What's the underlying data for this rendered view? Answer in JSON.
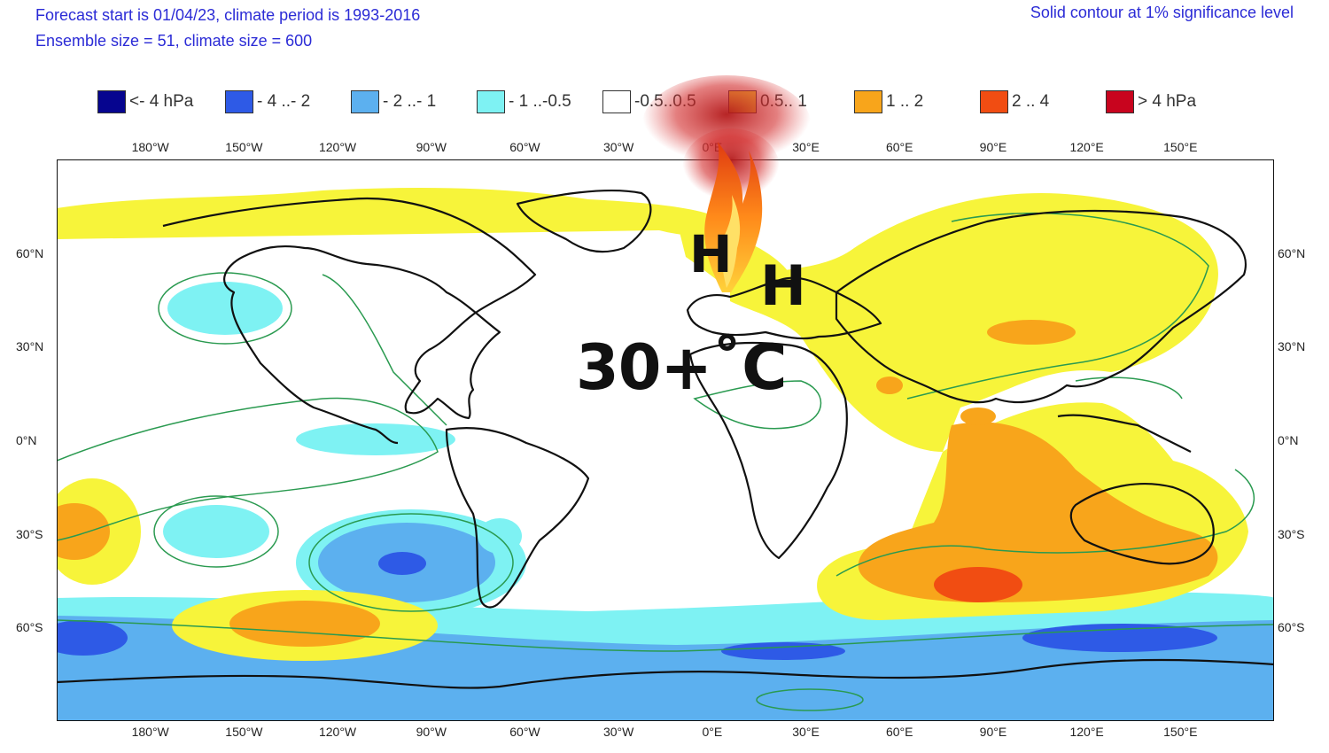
{
  "header": {
    "line1": "Forecast start is 01/04/23, climate period is 1993-2016",
    "line2": "Ensemble size = 51, climate size = 600",
    "right": "Solid contour at 1% significance level"
  },
  "legend": [
    {
      "label": "<- 4 hPa",
      "color": "#06058f"
    },
    {
      "label": "- 4 ..- 2",
      "color": "#2e5ae6"
    },
    {
      "label": "- 2 ..- 1",
      "color": "#5cb0ef"
    },
    {
      "label": "- 1 ..-0.5",
      "color": "#7ef2f3"
    },
    {
      "label": "-0.5..0.5",
      "color": "#ffffff"
    },
    {
      "label": "0.5.. 1",
      "color": "#f7f43a"
    },
    {
      "label": "1 .. 2",
      "color": "#f8a51b"
    },
    {
      "label": "2 .. 4",
      "color": "#f14d12"
    },
    {
      "label": ">  4 hPa",
      "color": "#c8041e"
    }
  ],
  "axes": {
    "lon_ticks": [
      "180°W",
      "150°W",
      "120°W",
      "90°W",
      "60°W",
      "30°W",
      "0°E",
      "30°E",
      "60°E",
      "90°E",
      "120°E",
      "150°E"
    ],
    "lon_values": [
      -180,
      -150,
      -120,
      -90,
      -60,
      -30,
      0,
      30,
      60,
      90,
      120,
      150
    ],
    "lat_ticks": [
      "60°N",
      "30°N",
      "0°N",
      "30°S",
      "60°S"
    ],
    "lat_values": [
      60,
      30,
      0,
      -30,
      -60
    ],
    "lon_range": [
      -210,
      180
    ],
    "lat_range": [
      -90,
      90
    ]
  },
  "overlays": {
    "high1": "H",
    "high2": "H",
    "temperature": "30+˚C"
  }
}
